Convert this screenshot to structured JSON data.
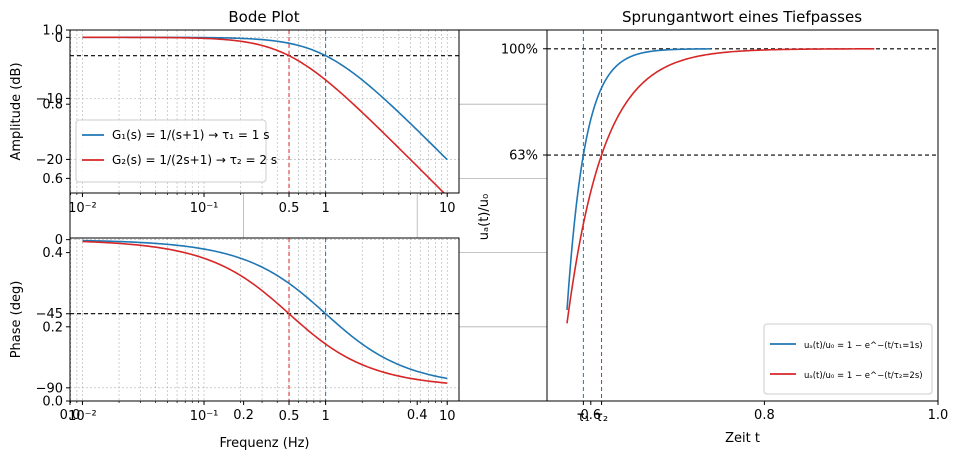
{
  "figure": {
    "bode_title": "Bode Plot",
    "step_title": "Sprungantwort eines Tiefpasses"
  },
  "chart_data": [
    {
      "id": "background_axes",
      "type": "line",
      "xlim": [
        0.0,
        1.0
      ],
      "ylim": [
        0.0,
        1.0
      ],
      "xticks": [
        {
          "v": 0.0,
          "label": "0.0"
        },
        {
          "v": 0.2,
          "label": "0.2"
        },
        {
          "v": 0.4,
          "label": "0.4"
        },
        {
          "v": 0.6,
          "label": "0.6"
        },
        {
          "v": 0.8,
          "label": "0.8"
        },
        {
          "v": 1.0,
          "label": "1.0"
        }
      ],
      "yticks": [
        {
          "v": 0.0,
          "label": "0.0"
        },
        {
          "v": 0.2,
          "label": "0.2"
        },
        {
          "v": 0.4,
          "label": "0.4"
        },
        {
          "v": 0.6,
          "label": "0.6"
        },
        {
          "v": 0.8,
          "label": "0.8"
        },
        {
          "v": 1.0,
          "label": "1.0"
        }
      ]
    },
    {
      "id": "amplitude",
      "type": "line",
      "xscale": "log",
      "xlim": [
        0.0079,
        12.5
      ],
      "ylim": [
        -25.5,
        1.2
      ],
      "ylabel": "Amplitude (dB)",
      "xticks": [
        {
          "v": 0.01,
          "label": "10⁻²"
        },
        {
          "v": 0.1,
          "label": "10⁻¹"
        },
        {
          "v": 0.5,
          "label": "0.5"
        },
        {
          "v": 1,
          "label": "1"
        },
        {
          "v": 10,
          "label": "10"
        }
      ],
      "yticks": [
        {
          "v": 0,
          "label": "0"
        },
        {
          "v": -10,
          "label": "−10"
        },
        {
          "v": -20,
          "label": "−20"
        }
      ],
      "grid": true,
      "hline": -3,
      "vlines": [
        {
          "x": 0.5,
          "series": "G2"
        },
        {
          "x": 1,
          "series": "G1"
        }
      ],
      "series": [
        {
          "key": "G1",
          "name": "G₁(s) = 1/(s+1) → τ₁ = 1 s",
          "tau": 1,
          "color": "#1f77b4"
        },
        {
          "key": "G2",
          "name": "G₂(s) = 1/(2s+1) → τ₂ = 2 s",
          "tau": 2,
          "color": "#d62728"
        }
      ],
      "legend": "lower-left"
    },
    {
      "id": "phase",
      "type": "line",
      "xscale": "log",
      "xlim": [
        0.0079,
        12.5
      ],
      "ylim": [
        -98,
        1
      ],
      "xlabel": "Frequenz (Hz)",
      "ylabel": "Phase (deg)",
      "xticks": [
        {
          "v": 0.01,
          "label": "10⁻²"
        },
        {
          "v": 0.1,
          "label": "10⁻¹"
        },
        {
          "v": 0.5,
          "label": "0.5"
        },
        {
          "v": 1,
          "label": "1"
        },
        {
          "v": 10,
          "label": "10"
        }
      ],
      "yticks": [
        {
          "v": 0,
          "label": "0"
        },
        {
          "v": -45,
          "label": "−45"
        },
        {
          "v": -90,
          "label": "−90"
        }
      ],
      "grid": true,
      "hline": -45,
      "vlines": [
        {
          "x": 0.5,
          "series": "G2"
        },
        {
          "x": 1,
          "series": "G1"
        }
      ],
      "series": [
        {
          "key": "G1",
          "tau": 1,
          "color": "#1f77b4"
        },
        {
          "key": "G2",
          "tau": 2,
          "color": "#d62728"
        }
      ]
    },
    {
      "id": "step",
      "type": "line",
      "title": "Sprungantwort eines Tiefpasses",
      "xlabel": "Zeit t",
      "ylabel": "uₐ(t)/u₀",
      "xlim": [
        -1.0,
        20.5
      ],
      "ylim": [
        -0.22,
        1.065
      ],
      "yticks": [
        {
          "v": 1.0,
          "label": "100%"
        },
        {
          "v": 0.632,
          "label": "63%"
        }
      ],
      "xticks": [
        {
          "v": 1,
          "label": "τ₁"
        },
        {
          "v": 2,
          "label": "τ₂"
        }
      ],
      "hlines": [
        1.0,
        0.632
      ],
      "vlines": [
        {
          "x": 1,
          "series": "S1"
        },
        {
          "x": 2,
          "series": "S2"
        }
      ],
      "t_range": [
        0.1,
        17
      ],
      "series": [
        {
          "key": "S1",
          "name": "uₐ(t)/u₀ = 1 − e^−(t/τ₁=1s)",
          "tau": 1,
          "t_end": 8,
          "color": "#1f77b4"
        },
        {
          "key": "S2",
          "name": "uₐ(t)/u₀ = 1 − e^−(t/τ₂=2s)",
          "tau": 2,
          "t_end": 17,
          "color": "#d62728"
        }
      ],
      "legend": "lower-right"
    }
  ]
}
